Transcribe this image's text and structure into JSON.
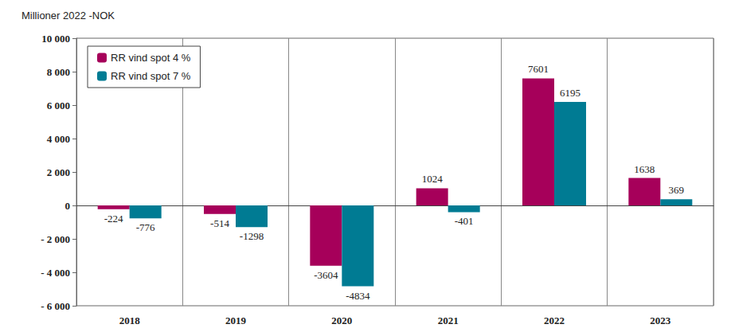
{
  "chart_data": {
    "type": "bar",
    "title": "Millioner 2022 -NOK",
    "categories": [
      "2018",
      "2019",
      "2020",
      "2021",
      "2022",
      "2023"
    ],
    "series": [
      {
        "name": "RR vind spot 4 %",
        "color": "#a6005a",
        "values": [
          -224,
          -514,
          -3604,
          1024,
          7601,
          1638
        ]
      },
      {
        "name": "RR vind spot 7 %",
        "color": "#007b93",
        "values": [
          -776,
          -1298,
          -4834,
          -401,
          6195,
          369
        ]
      }
    ],
    "ylim": [
      -6000,
      10000
    ],
    "yticks": [
      {
        "value": -6000,
        "label": "- 6 000"
      },
      {
        "value": -4000,
        "label": "- 4 000"
      },
      {
        "value": -2000,
        "label": "- 2 000"
      },
      0,
      {
        "value": 2000,
        "label": "2 000"
      },
      {
        "value": 4000,
        "label": "4 000"
      },
      {
        "value": 6000,
        "label": "6 000"
      },
      {
        "value": 8000,
        "label": "8 000"
      },
      {
        "value": 10000,
        "label": "10 000"
      }
    ],
    "grid": true,
    "legend": "upper left",
    "data_labels": true
  }
}
